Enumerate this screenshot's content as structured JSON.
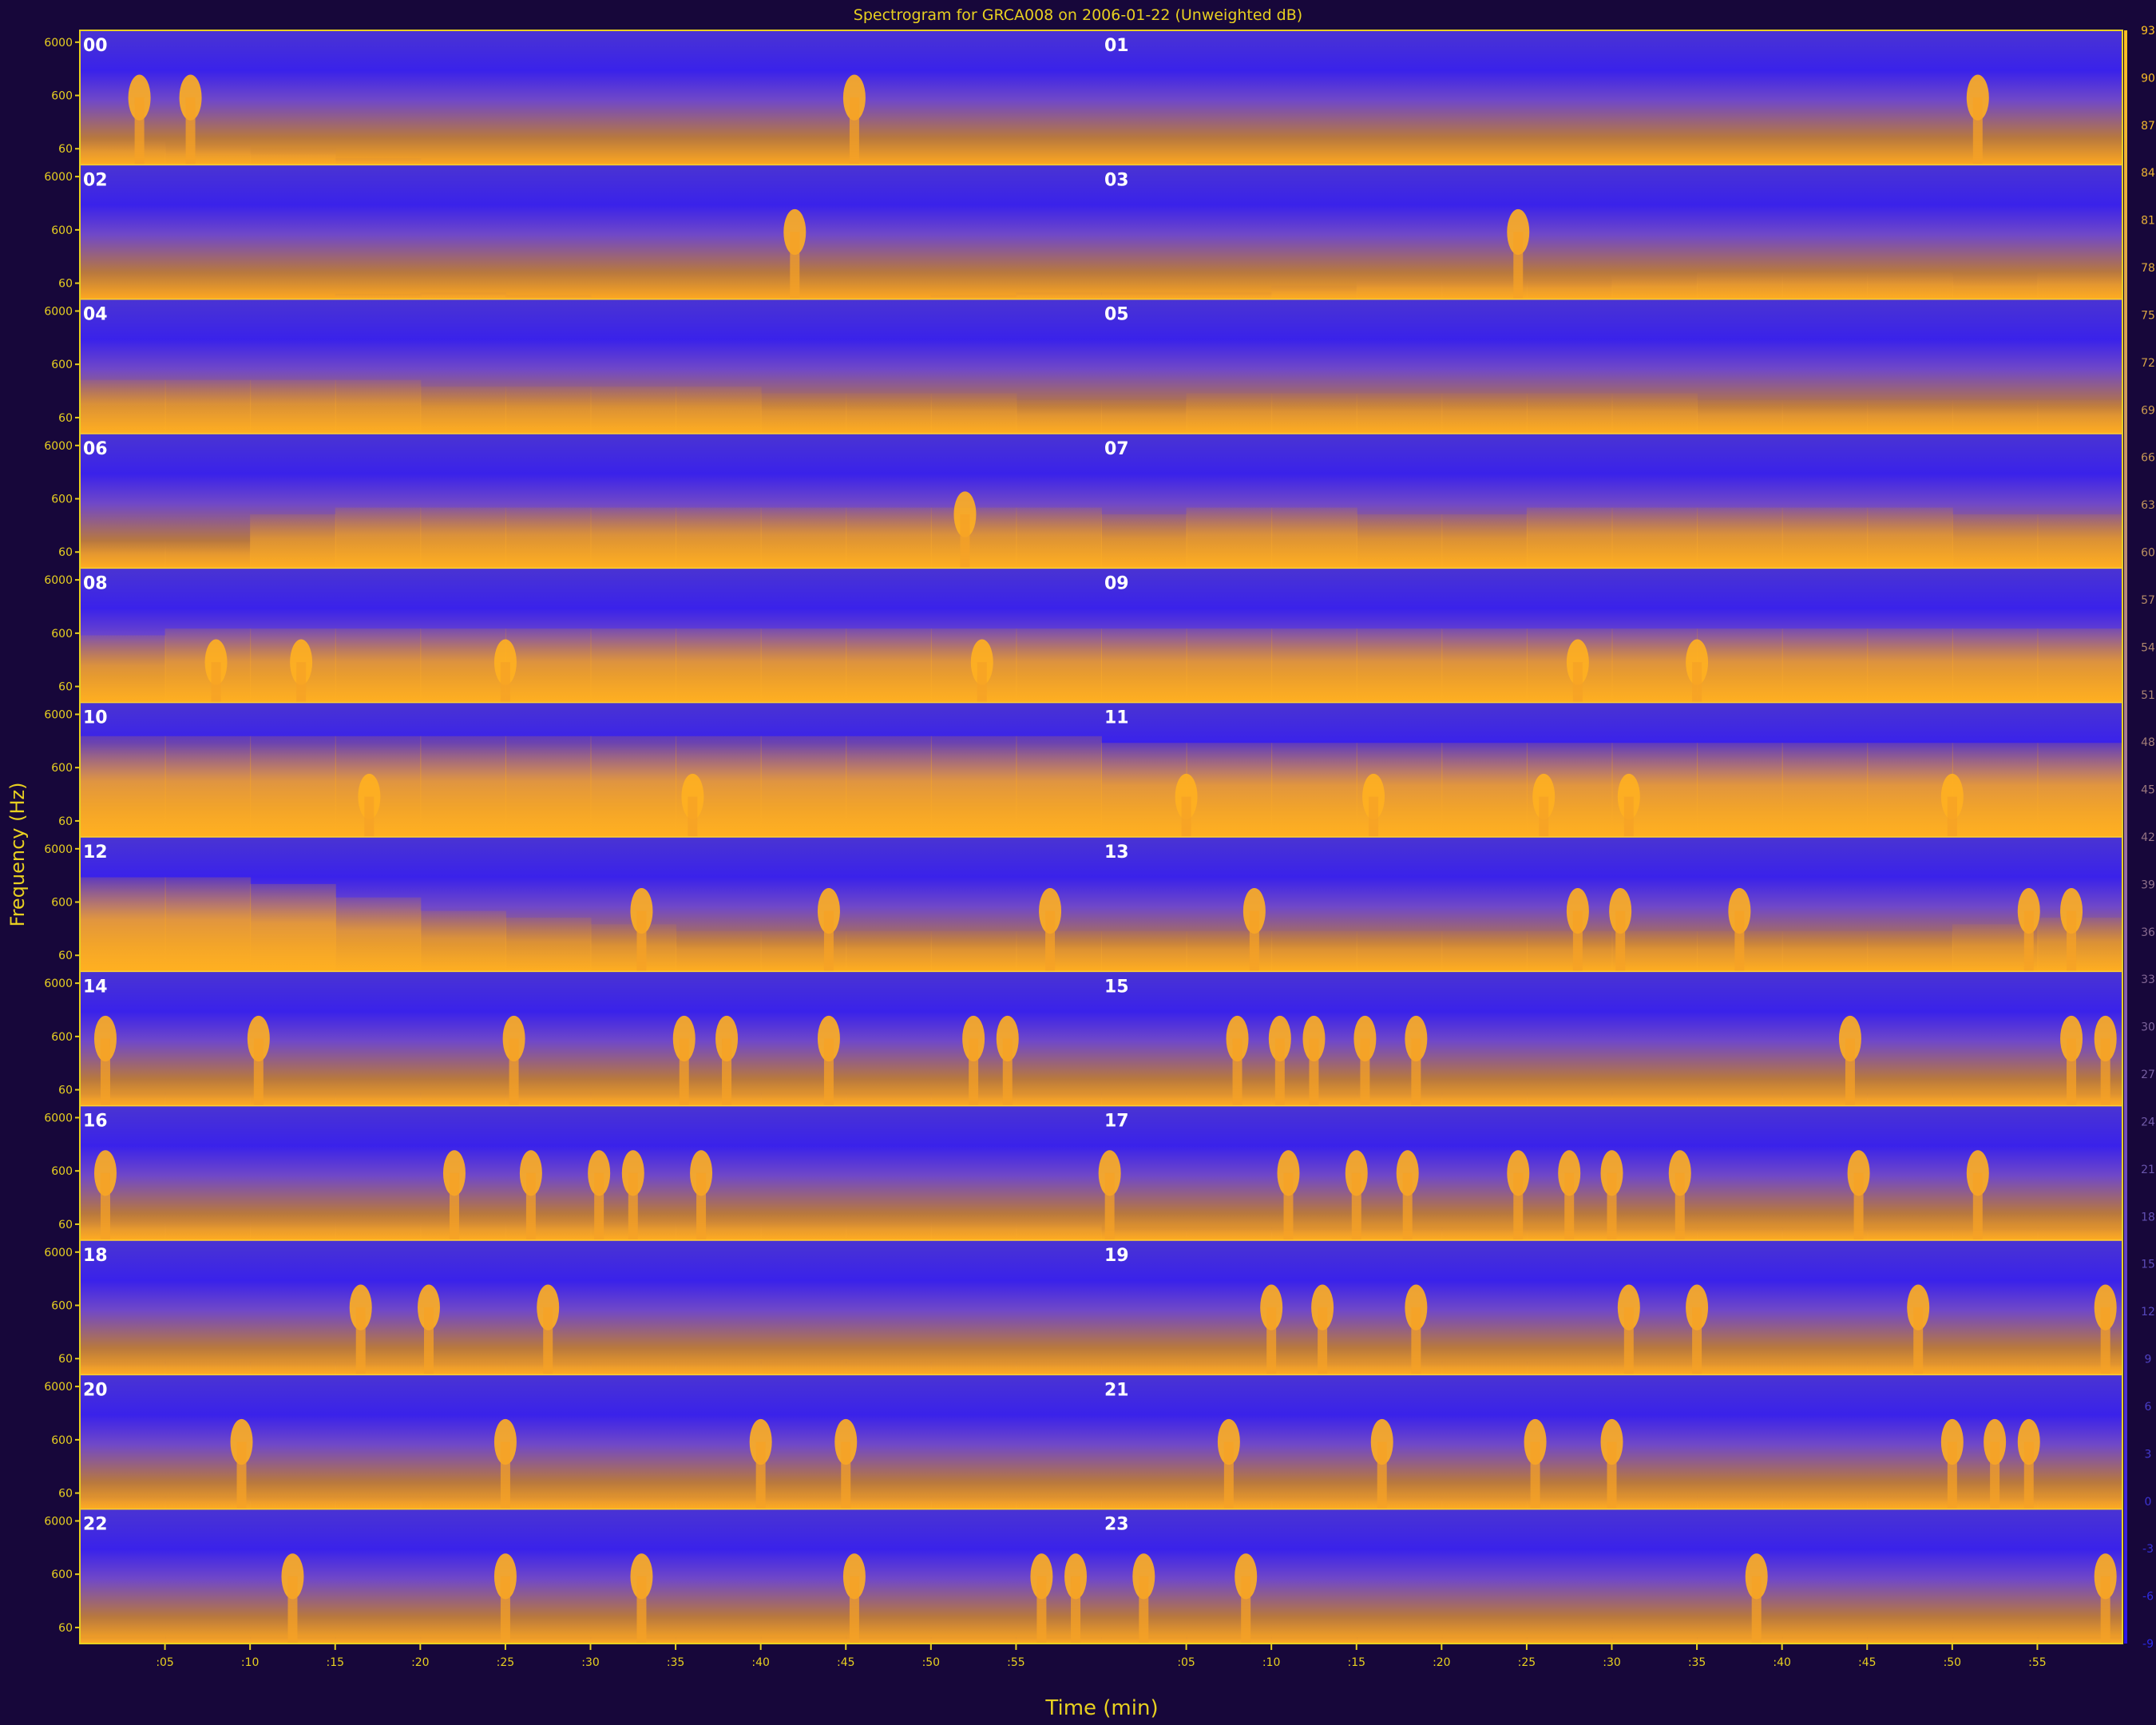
{
  "chart_data": {
    "type": "heatmap",
    "title": "Spectrogram for GRCA008 on 2006-01-22 (Unweighted dB)",
    "xlabel": "Time (min)",
    "ylabel": "Frequency (Hz)",
    "rows": [
      {
        "left_hour": "00",
        "right_hour": "01"
      },
      {
        "left_hour": "02",
        "right_hour": "03"
      },
      {
        "left_hour": "04",
        "right_hour": "05"
      },
      {
        "left_hour": "06",
        "right_hour": "07"
      },
      {
        "left_hour": "08",
        "right_hour": "09"
      },
      {
        "left_hour": "10",
        "right_hour": "11"
      },
      {
        "left_hour": "12",
        "right_hour": "13"
      },
      {
        "left_hour": "14",
        "right_hour": "15"
      },
      {
        "left_hour": "16",
        "right_hour": "17"
      },
      {
        "left_hour": "18",
        "right_hour": "19"
      },
      {
        "left_hour": "20",
        "right_hour": "21"
      },
      {
        "left_hour": "22",
        "right_hour": "23"
      }
    ],
    "freq_ticks": [
      "60",
      "600",
      "6000"
    ],
    "time_ticks": [
      ":05",
      ":10",
      ":15",
      ":20",
      ":25",
      ":30",
      ":35",
      ":40",
      ":45",
      ":50",
      ":55",
      ":05",
      ":10",
      ":15",
      ":20",
      ":25",
      ":30",
      ":35",
      ":40",
      ":45",
      ":50",
      ":55"
    ],
    "color_scale": {
      "labels": [
        "93",
        "90",
        "87",
        "84",
        "81",
        "78",
        "75",
        "72",
        "69",
        "66",
        "63",
        "60",
        "57",
        "54",
        "51",
        "48",
        "45",
        "42",
        "39",
        "36",
        "33",
        "30",
        "27",
        "24",
        "21",
        "18",
        "15",
        "12",
        "9",
        "6",
        "3",
        "0",
        "-3",
        "-6",
        "-9"
      ],
      "low_color": "#2a14e6",
      "high_color": "#ffb020"
    },
    "activity": [
      [
        0.18,
        0.15,
        0.12,
        0.05,
        0.0,
        0.0,
        0.0,
        0.0,
        0.0,
        0.0,
        0.0,
        0.0,
        0.0,
        0.02,
        0.02,
        0.0,
        0.0,
        0.0,
        0.0,
        0.0,
        0.0,
        0.0,
        0.0,
        0.0
      ],
      [
        0.0,
        0.0,
        0.0,
        0.04,
        0.05,
        0.03,
        0.0,
        0.0,
        0.0,
        0.0,
        0.03,
        0.05,
        0.05,
        0.05,
        0.1,
        0.15,
        0.15,
        0.15,
        0.18,
        0.2,
        0.2,
        0.2,
        0.18,
        0.2
      ],
      [
        0.4,
        0.4,
        0.4,
        0.4,
        0.35,
        0.35,
        0.35,
        0.35,
        0.3,
        0.3,
        0.3,
        0.25,
        0.25,
        0.3,
        0.3,
        0.3,
        0.3,
        0.3,
        0.3,
        0.25,
        0.25,
        0.25,
        0.25,
        0.25
      ],
      [
        0.2,
        0.2,
        0.4,
        0.45,
        0.45,
        0.45,
        0.45,
        0.45,
        0.45,
        0.45,
        0.45,
        0.45,
        0.4,
        0.45,
        0.45,
        0.4,
        0.4,
        0.45,
        0.45,
        0.45,
        0.45,
        0.45,
        0.4,
        0.4
      ],
      [
        0.5,
        0.55,
        0.55,
        0.55,
        0.55,
        0.55,
        0.55,
        0.55,
        0.55,
        0.55,
        0.55,
        0.55,
        0.55,
        0.55,
        0.55,
        0.55,
        0.55,
        0.55,
        0.55,
        0.55,
        0.55,
        0.55,
        0.55,
        0.55
      ],
      [
        0.75,
        0.75,
        0.75,
        0.75,
        0.75,
        0.75,
        0.75,
        0.75,
        0.75,
        0.75,
        0.75,
        0.75,
        0.7,
        0.7,
        0.7,
        0.7,
        0.7,
        0.7,
        0.7,
        0.7,
        0.7,
        0.7,
        0.7,
        0.7
      ],
      [
        0.7,
        0.7,
        0.65,
        0.55,
        0.45,
        0.4,
        0.35,
        0.3,
        0.3,
        0.3,
        0.3,
        0.3,
        0.3,
        0.3,
        0.3,
        0.3,
        0.3,
        0.3,
        0.3,
        0.3,
        0.3,
        0.3,
        0.35,
        0.4
      ],
      [
        0.1,
        0.1,
        0.1,
        0.1,
        0.1,
        0.1,
        0.1,
        0.1,
        0.1,
        0.1,
        0.1,
        0.1,
        0.1,
        0.1,
        0.1,
        0.1,
        0.1,
        0.1,
        0.1,
        0.1,
        0.1,
        0.1,
        0.1,
        0.1
      ],
      [
        0.15,
        0.15,
        0.15,
        0.15,
        0.15,
        0.15,
        0.15,
        0.15,
        0.15,
        0.15,
        0.15,
        0.15,
        0.1,
        0.1,
        0.1,
        0.1,
        0.1,
        0.1,
        0.1,
        0.1,
        0.1,
        0.1,
        0.1,
        0.1
      ],
      [
        0.1,
        0.1,
        0.1,
        0.1,
        0.1,
        0.1,
        0.1,
        0.1,
        0.1,
        0.1,
        0.1,
        0.1,
        0.1,
        0.1,
        0.1,
        0.1,
        0.1,
        0.1,
        0.1,
        0.1,
        0.1,
        0.1,
        0.1,
        0.1
      ],
      [
        0.1,
        0.1,
        0.1,
        0.1,
        0.1,
        0.1,
        0.1,
        0.1,
        0.1,
        0.1,
        0.1,
        0.1,
        0.1,
        0.1,
        0.1,
        0.1,
        0.1,
        0.1,
        0.1,
        0.1,
        0.1,
        0.1,
        0.1,
        0.1
      ],
      [
        0.05,
        0.05,
        0.05,
        0.05,
        0.05,
        0.05,
        0.05,
        0.05,
        0.05,
        0.05,
        0.05,
        0.05,
        0.05,
        0.05,
        0.05,
        0.05,
        0.05,
        0.05,
        0.05,
        0.05,
        0.05,
        0.05,
        0.05,
        0.05
      ]
    ],
    "events": [
      [
        {
          "t": 3.5,
          "f": 0.5
        },
        {
          "t": 6.5,
          "f": 0.5
        },
        {
          "t": 45.5,
          "f": 0.5
        },
        {
          "t": 111.5,
          "f": 0.5
        }
      ],
      [
        {
          "t": 42,
          "f": 0.5
        },
        {
          "t": 84.5,
          "f": 0.5
        }
      ],
      [],
      [
        {
          "t": 52,
          "f": 0.4
        }
      ],
      [
        {
          "t": 8,
          "f": 0.3
        },
        {
          "t": 13,
          "f": 0.3
        },
        {
          "t": 25,
          "f": 0.3
        },
        {
          "t": 53,
          "f": 0.3
        },
        {
          "t": 88,
          "f": 0.3
        },
        {
          "t": 95,
          "f": 0.3
        }
      ],
      [
        {
          "t": 17,
          "f": 0.3
        },
        {
          "t": 36,
          "f": 0.3
        },
        {
          "t": 65,
          "f": 0.3
        },
        {
          "t": 76,
          "f": 0.3
        },
        {
          "t": 86,
          "f": 0.3
        },
        {
          "t": 91,
          "f": 0.3
        },
        {
          "t": 110,
          "f": 0.3
        }
      ],
      [
        {
          "t": 33,
          "f": 0.45
        },
        {
          "t": 44,
          "f": 0.45
        },
        {
          "t": 57,
          "f": 0.45
        },
        {
          "t": 69,
          "f": 0.45
        },
        {
          "t": 88,
          "f": 0.45
        },
        {
          "t": 90.5,
          "f": 0.45
        },
        {
          "t": 97.5,
          "f": 0.45
        },
        {
          "t": 114.5,
          "f": 0.45
        },
        {
          "t": 117,
          "f": 0.45
        }
      ],
      [
        {
          "t": 1.5,
          "f": 0.5
        },
        {
          "t": 10.5,
          "f": 0.5
        },
        {
          "t": 25.5,
          "f": 0.5
        },
        {
          "t": 35.5,
          "f": 0.5
        },
        {
          "t": 38,
          "f": 0.5
        },
        {
          "t": 44,
          "f": 0.5
        },
        {
          "t": 52.5,
          "f": 0.5
        },
        {
          "t": 54.5,
          "f": 0.5
        },
        {
          "t": 68,
          "f": 0.5
        },
        {
          "t": 70.5,
          "f": 0.5
        },
        {
          "t": 72.5,
          "f": 0.5
        },
        {
          "t": 75.5,
          "f": 0.5
        },
        {
          "t": 78.5,
          "f": 0.5
        },
        {
          "t": 104,
          "f": 0.5
        },
        {
          "t": 117,
          "f": 0.5
        },
        {
          "t": 119,
          "f": 0.5
        }
      ],
      [
        {
          "t": 1.5,
          "f": 0.5
        },
        {
          "t": 22,
          "f": 0.5
        },
        {
          "t": 26.5,
          "f": 0.5
        },
        {
          "t": 30.5,
          "f": 0.5
        },
        {
          "t": 32.5,
          "f": 0.5
        },
        {
          "t": 36.5,
          "f": 0.5
        },
        {
          "t": 60.5,
          "f": 0.5
        },
        {
          "t": 71,
          "f": 0.5
        },
        {
          "t": 75,
          "f": 0.5
        },
        {
          "t": 78,
          "f": 0.5
        },
        {
          "t": 84.5,
          "f": 0.5
        },
        {
          "t": 87.5,
          "f": 0.5
        },
        {
          "t": 90,
          "f": 0.5
        },
        {
          "t": 94,
          "f": 0.5
        },
        {
          "t": 104.5,
          "f": 0.5
        },
        {
          "t": 111.5,
          "f": 0.5
        }
      ],
      [
        {
          "t": 16.5,
          "f": 0.5
        },
        {
          "t": 20.5,
          "f": 0.5
        },
        {
          "t": 27.5,
          "f": 0.5
        },
        {
          "t": 70,
          "f": 0.5
        },
        {
          "t": 73,
          "f": 0.5
        },
        {
          "t": 78.5,
          "f": 0.5
        },
        {
          "t": 91,
          "f": 0.5
        },
        {
          "t": 95,
          "f": 0.5
        },
        {
          "t": 108,
          "f": 0.5
        },
        {
          "t": 119,
          "f": 0.5
        }
      ],
      [
        {
          "t": 9.5,
          "f": 0.5
        },
        {
          "t": 25,
          "f": 0.5
        },
        {
          "t": 40,
          "f": 0.5
        },
        {
          "t": 45,
          "f": 0.5
        },
        {
          "t": 67.5,
          "f": 0.5
        },
        {
          "t": 76.5,
          "f": 0.5
        },
        {
          "t": 85.5,
          "f": 0.5
        },
        {
          "t": 90,
          "f": 0.5
        },
        {
          "t": 110,
          "f": 0.5
        },
        {
          "t": 112.5,
          "f": 0.5
        },
        {
          "t": 114.5,
          "f": 0.5
        }
      ],
      [
        {
          "t": 12.5,
          "f": 0.5
        },
        {
          "t": 25,
          "f": 0.5
        },
        {
          "t": 33,
          "f": 0.5
        },
        {
          "t": 45.5,
          "f": 0.5
        },
        {
          "t": 56.5,
          "f": 0.5
        },
        {
          "t": 58.5,
          "f": 0.5
        },
        {
          "t": 62.5,
          "f": 0.5
        },
        {
          "t": 68.5,
          "f": 0.5
        },
        {
          "t": 98.5,
          "f": 0.5
        },
        {
          "t": 119,
          "f": 0.5
        }
      ]
    ]
  }
}
